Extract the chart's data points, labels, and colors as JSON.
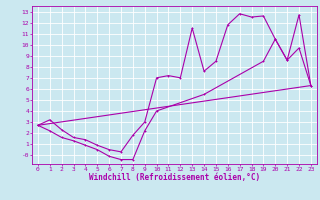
{
  "xlabel": "Windchill (Refroidissement éolien,°C)",
  "bg_color": "#cbe8f0",
  "line_color": "#aa00aa",
  "grid_color": "#ffffff",
  "xlim": [
    -0.5,
    23.5
  ],
  "ylim": [
    -0.8,
    13.5
  ],
  "xticks": [
    0,
    1,
    2,
    3,
    4,
    5,
    6,
    7,
    8,
    9,
    10,
    11,
    12,
    13,
    14,
    15,
    16,
    17,
    18,
    19,
    20,
    21,
    22,
    23
  ],
  "yticks": [
    0,
    1,
    2,
    3,
    4,
    5,
    6,
    7,
    8,
    9,
    10,
    11,
    12,
    13
  ],
  "line1_x": [
    0,
    1,
    2,
    3,
    4,
    5,
    6,
    7,
    8,
    9,
    10,
    11,
    12,
    13,
    14,
    15,
    16,
    17,
    18,
    19,
    20,
    21,
    22,
    23
  ],
  "line1_y": [
    2.7,
    3.2,
    2.3,
    1.6,
    1.4,
    0.9,
    0.5,
    0.3,
    1.8,
    3.0,
    7.0,
    7.2,
    7.0,
    11.5,
    7.6,
    8.5,
    11.8,
    12.8,
    12.5,
    12.6,
    10.5,
    8.6,
    12.7,
    6.3
  ],
  "line2_x": [
    0,
    1,
    2,
    3,
    4,
    5,
    6,
    7,
    8,
    9,
    10,
    14,
    19,
    20,
    21,
    22,
    23
  ],
  "line2_y": [
    2.7,
    2.2,
    1.6,
    1.3,
    0.9,
    0.5,
    -0.1,
    -0.4,
    -0.4,
    2.2,
    4.0,
    5.5,
    8.5,
    10.5,
    8.6,
    9.7,
    6.3
  ],
  "line3_x": [
    0,
    23
  ],
  "line3_y": [
    2.7,
    6.3
  ]
}
